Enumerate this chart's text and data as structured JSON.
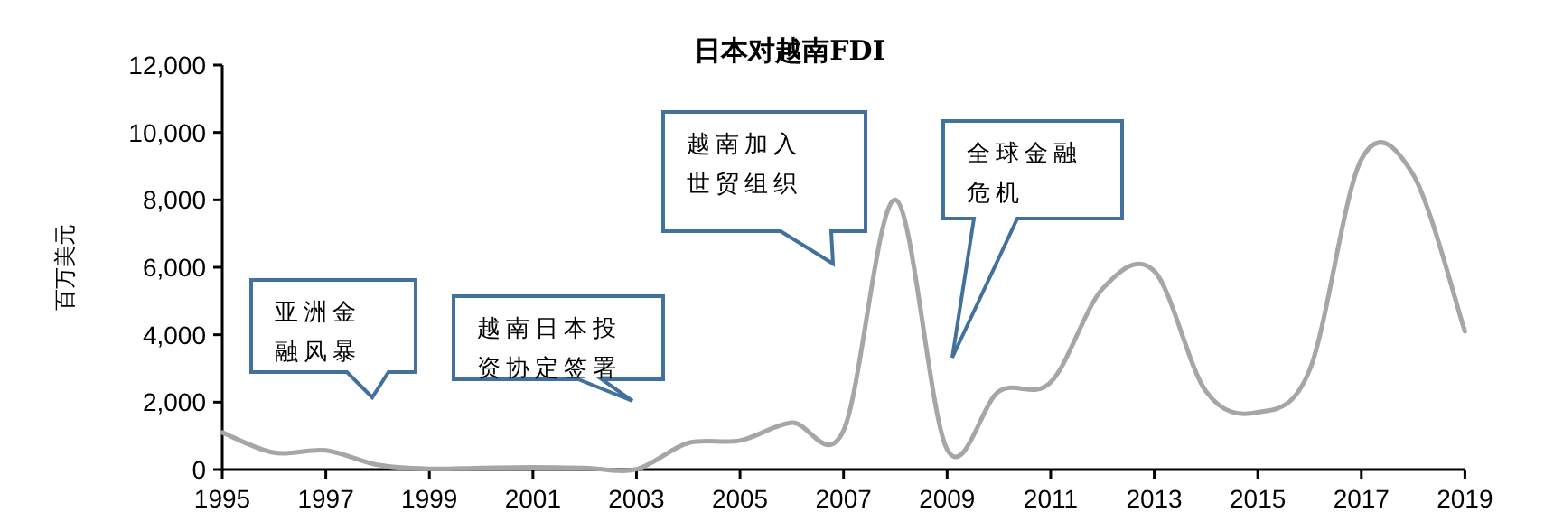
{
  "chart_data": {
    "type": "line",
    "title": "日本对越南FDI",
    "ylabel": "百万美元",
    "x": [
      1995,
      1996,
      1997,
      1998,
      1999,
      2000,
      2001,
      2002,
      2003,
      2004,
      2005,
      2006,
      2007,
      2008,
      2009,
      2010,
      2011,
      2012,
      2013,
      2014,
      2015,
      2016,
      2017,
      2018,
      2019
    ],
    "series": [
      {
        "color": "#a6a6a6",
        "values": [
          1100,
          500,
          570,
          140,
          20,
          50,
          70,
          50,
          10,
          790,
          860,
          1390,
          1160,
          8000,
          600,
          2320,
          2590,
          5360,
          5890,
          2320,
          1700,
          2950,
          9200,
          8750,
          4100
        ]
      }
    ],
    "xlim": [
      1995,
      2019
    ],
    "xticks": [
      1995,
      1997,
      1999,
      2001,
      2003,
      2005,
      2007,
      2009,
      2011,
      2013,
      2015,
      2017,
      2019
    ],
    "ylim": [
      0,
      12000
    ],
    "yticks": [
      0,
      {
        "value": 2000,
        "label": "2,000"
      },
      {
        "value": 4000,
        "label": "4,000"
      },
      {
        "value": 6000,
        "label": "6,000"
      },
      {
        "value": 8000,
        "label": "8,000"
      },
      {
        "value": 10000,
        "label": "10,000"
      },
      {
        "value": 12000,
        "label": "12,000"
      }
    ],
    "grid": false,
    "marker": "none",
    "line_style": "solid",
    "annotations": [
      "亚洲金融风暴",
      "越南日本投资协定签署",
      "越南加入世贸组织",
      "全球金融危机"
    ]
  }
}
